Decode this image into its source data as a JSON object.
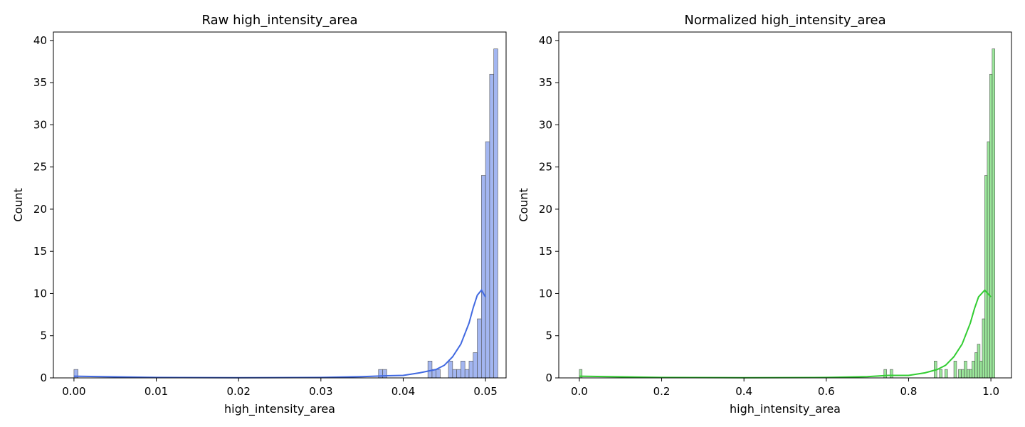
{
  "chart_data": [
    {
      "type": "bar",
      "title": "Raw high_intensity_area",
      "xlabel": "high_intensity_area",
      "ylabel": "Count",
      "xlim": [
        -0.0025,
        0.0525
      ],
      "ylim": [
        0,
        41
      ],
      "xticks": [
        0.0,
        0.01,
        0.02,
        0.03,
        0.04,
        0.05
      ],
      "xtick_labels": [
        "0.00",
        "0.01",
        "0.02",
        "0.03",
        "0.04",
        "0.05"
      ],
      "yticks": [
        0,
        5,
        10,
        15,
        20,
        25,
        30,
        35,
        40
      ],
      "ytick_labels": [
        "0",
        "5",
        "10",
        "15",
        "20",
        "25",
        "30",
        "35",
        "40"
      ],
      "grid": false,
      "color": "#4169e1",
      "bin_width": 0.0005,
      "bins": [
        {
          "x": 0.0,
          "count": 1
        },
        {
          "x": 0.037,
          "count": 1
        },
        {
          "x": 0.0375,
          "count": 1
        },
        {
          "x": 0.043,
          "count": 2
        },
        {
          "x": 0.0435,
          "count": 1
        },
        {
          "x": 0.044,
          "count": 1
        },
        {
          "x": 0.0455,
          "count": 2
        },
        {
          "x": 0.046,
          "count": 1
        },
        {
          "x": 0.0465,
          "count": 1
        },
        {
          "x": 0.047,
          "count": 2
        },
        {
          "x": 0.0475,
          "count": 1
        },
        {
          "x": 0.048,
          "count": 2
        },
        {
          "x": 0.0485,
          "count": 3
        },
        {
          "x": 0.049,
          "count": 7
        },
        {
          "x": 0.0495,
          "count": 24
        },
        {
          "x": 0.05,
          "count": 28
        },
        {
          "x": 0.0505,
          "count": 36
        },
        {
          "x": 0.051,
          "count": 39
        }
      ],
      "kde": [
        [
          0.0,
          0.2
        ],
        [
          0.01,
          0.05
        ],
        [
          0.02,
          0.02
        ],
        [
          0.03,
          0.05
        ],
        [
          0.035,
          0.15
        ],
        [
          0.038,
          0.25
        ],
        [
          0.04,
          0.3
        ],
        [
          0.042,
          0.6
        ],
        [
          0.044,
          1.0
        ],
        [
          0.045,
          1.5
        ],
        [
          0.046,
          2.5
        ],
        [
          0.047,
          4.0
        ],
        [
          0.048,
          6.5
        ],
        [
          0.0485,
          8.3
        ],
        [
          0.049,
          9.8
        ],
        [
          0.0495,
          10.4
        ],
        [
          0.05,
          9.6
        ]
      ]
    },
    {
      "type": "bar",
      "title": "Normalized high_intensity_area",
      "xlabel": "high_intensity_area",
      "ylabel": "Count",
      "xlim": [
        -0.05,
        1.05
      ],
      "ylim": [
        0,
        41
      ],
      "xticks": [
        0.0,
        0.2,
        0.4,
        0.6,
        0.8,
        1.0
      ],
      "xtick_labels": [
        "0.0",
        "0.2",
        "0.4",
        "0.6",
        "0.8",
        "1.0"
      ],
      "yticks": [
        0,
        5,
        10,
        15,
        20,
        25,
        30,
        35,
        40
      ],
      "ytick_labels": [
        "0",
        "5",
        "10",
        "15",
        "20",
        "25",
        "30",
        "35",
        "40"
      ],
      "grid": false,
      "color": "#32cd32",
      "bin_width": 0.00667,
      "bins": [
        {
          "x": 0.0,
          "count": 1
        },
        {
          "x": 0.74,
          "count": 1
        },
        {
          "x": 0.755,
          "count": 1
        },
        {
          "x": 0.862,
          "count": 2
        },
        {
          "x": 0.875,
          "count": 1
        },
        {
          "x": 0.888,
          "count": 1
        },
        {
          "x": 0.91,
          "count": 2
        },
        {
          "x": 0.921,
          "count": 1
        },
        {
          "x": 0.928,
          "count": 1
        },
        {
          "x": 0.935,
          "count": 2
        },
        {
          "x": 0.942,
          "count": 1
        },
        {
          "x": 0.948,
          "count": 1
        },
        {
          "x": 0.954,
          "count": 2
        },
        {
          "x": 0.961,
          "count": 3
        },
        {
          "x": 0.967,
          "count": 4
        },
        {
          "x": 0.973,
          "count": 2
        },
        {
          "x": 0.979,
          "count": 7
        },
        {
          "x": 0.985,
          "count": 24
        },
        {
          "x": 0.991,
          "count": 28
        },
        {
          "x": 0.997,
          "count": 36
        },
        {
          "x": 1.003,
          "count": 39
        }
      ],
      "kde": [
        [
          0.0,
          0.2
        ],
        [
          0.2,
          0.05
        ],
        [
          0.4,
          0.02
        ],
        [
          0.6,
          0.05
        ],
        [
          0.7,
          0.15
        ],
        [
          0.75,
          0.3
        ],
        [
          0.8,
          0.3
        ],
        [
          0.84,
          0.6
        ],
        [
          0.87,
          1.0
        ],
        [
          0.89,
          1.5
        ],
        [
          0.91,
          2.5
        ],
        [
          0.93,
          4.0
        ],
        [
          0.95,
          6.5
        ],
        [
          0.96,
          8.2
        ],
        [
          0.97,
          9.6
        ],
        [
          0.985,
          10.4
        ],
        [
          1.0,
          9.6
        ]
      ]
    }
  ]
}
